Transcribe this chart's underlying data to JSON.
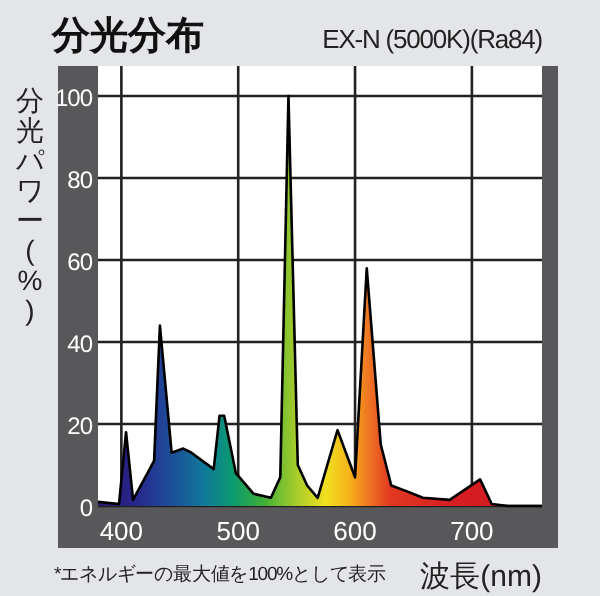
{
  "chart_data": {
    "type": "area",
    "title": "分光分布",
    "subtitle": "EX-N (5000K)(Ra84)",
    "xlabel": "波長(nm)",
    "ylabel": "分光パワー(%)",
    "annotations": [
      "*エネルギーの最大値を100%として表示"
    ],
    "x": [
      380,
      398,
      404,
      410,
      428,
      433,
      443,
      453,
      460,
      479,
      484,
      488,
      498,
      513,
      528,
      536,
      543,
      551,
      559,
      568,
      585,
      600,
      610,
      622,
      631,
      645,
      658,
      681,
      707,
      717,
      731,
      760
    ],
    "series": [
      {
        "color": "#000000",
        "values": [
          1,
          0.5,
          18,
          1.5,
          11,
          44,
          13,
          14,
          13,
          9,
          22,
          22,
          8,
          3,
          2,
          7,
          100,
          10,
          5,
          2,
          18.5,
          7,
          58,
          15,
          5,
          3.5,
          2,
          1.5,
          6.5,
          0.5,
          0,
          0
        ]
      }
    ],
    "xlim": [
      380,
      760
    ],
    "ylim": [
      0,
      100
    ],
    "xticks": [
      400,
      500,
      600,
      700
    ],
    "yticks": [
      0,
      20,
      40,
      60,
      80,
      100
    ],
    "grid": true
  }
}
